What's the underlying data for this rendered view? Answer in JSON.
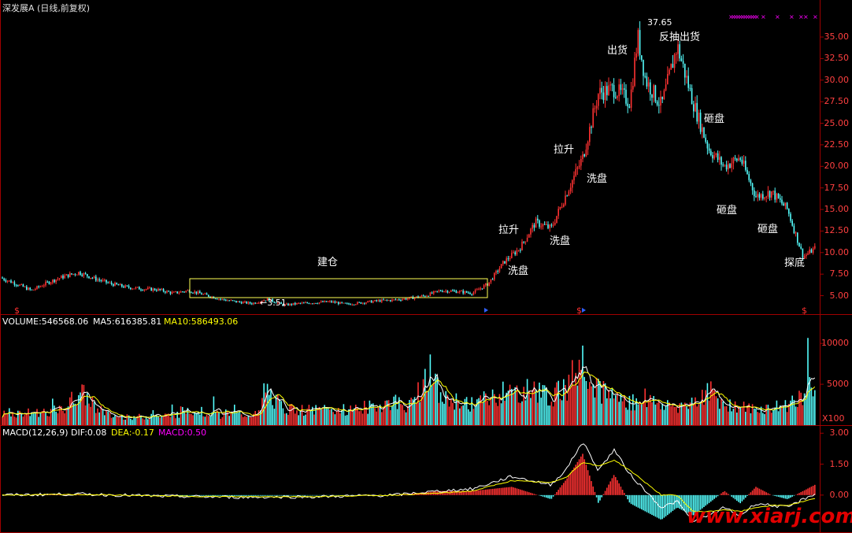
{
  "header": {
    "title": "深发展A (日线,前复权)"
  },
  "labels": {
    "build": "建仓",
    "low": "3.51",
    "high": "37.65",
    "pull1": "拉升",
    "wash1": "洗盘",
    "wash2": "洗盘",
    "pull2": "拉升",
    "wash3": "洗盘",
    "sell1": "出货",
    "sell2": "反抽出货",
    "smash1": "砸盘",
    "smash2": "砸盘",
    "smash3": "砸盘",
    "probe": "探底"
  },
  "volume_panel": {
    "label": "VOLUME:546568.06",
    "ma5": "MA5:616385.81",
    "ma10": "MA10:586493.06",
    "unit": "X100"
  },
  "macd_panel": {
    "label": "MACD(12,26,9)",
    "dif": "DIF:0.08",
    "dea": "DEA:-0.17",
    "macd": "MACD:0.50"
  },
  "watermark": "www.xiarj.com",
  "colors": {
    "up": "#ff3232",
    "down": "#54fcfc",
    "ma5": "#ffffff",
    "ma10": "#ffff00",
    "macd": "#ff00ff",
    "axis": "#a00000",
    "box": "#ffff55"
  },
  "chart_data": [
    {
      "type": "candlestick",
      "title": "深发展A (日线,前复权)",
      "ylim": [
        3.5,
        37.65
      ],
      "yticks": [
        "35.00",
        "32.50",
        "30.00",
        "27.50",
        "25.00",
        "22.50",
        "20.00",
        "17.50",
        "15.00",
        "12.50",
        "10.00",
        "7.50",
        "5.00"
      ],
      "x": [
        0,
        20,
        40,
        60,
        80,
        100,
        120,
        140,
        160,
        180,
        200,
        220,
        240,
        260,
        280,
        300,
        320,
        340,
        360,
        380,
        400,
        420,
        440,
        460,
        480,
        500,
        520,
        540,
        560,
        580,
        600,
        620,
        640,
        660,
        680,
        700,
        720,
        740,
        760,
        780,
        800,
        810,
        820,
        840,
        860,
        880,
        900,
        920,
        940,
        960,
        980,
        1000,
        1020,
        1035
      ],
      "close": [
        7.1,
        6.4,
        5.6,
        6.5,
        7.2,
        7.7,
        7.0,
        6.4,
        6.0,
        5.8,
        5.7,
        5.3,
        5.6,
        5.1,
        4.6,
        4.3,
        4.1,
        4.6,
        3.9,
        4.1,
        4.2,
        4.3,
        4.0,
        4.2,
        4.4,
        4.5,
        4.7,
        5.0,
        5.6,
        5.5,
        5.3,
        6.4,
        8.9,
        10.5,
        13.5,
        12.8,
        17.0,
        21.0,
        28.5,
        29.0,
        27.5,
        35.0,
        30.0,
        27.0,
        34.0,
        27.5,
        22.0,
        20.0,
        21.0,
        16.5,
        17.0,
        15.0,
        9.5,
        10.5
      ],
      "annotations": [
        "建仓",
        "3.51",
        "37.65",
        "拉升",
        "洗盘",
        "洗盘",
        "拉升",
        "洗盘",
        "出货",
        "反抽出货",
        "砸盘",
        "砸盘",
        "砸盘",
        "探底"
      ]
    },
    {
      "type": "bar",
      "title": "VOLUME",
      "ylim": [
        0,
        13000
      ],
      "yticks": [
        "10000",
        "5000"
      ],
      "unit": "X100",
      "x": [
        0,
        40,
        80,
        100,
        140,
        180,
        220,
        240,
        280,
        330,
        336,
        360,
        400,
        440,
        480,
        500,
        520,
        545,
        560,
        600,
        620,
        640,
        660,
        680,
        700,
        720,
        740,
        760,
        780,
        800,
        820,
        840,
        860,
        880,
        900,
        920,
        940,
        960,
        980,
        1000,
        1035
      ],
      "values": [
        1500,
        1700,
        2000,
        4500,
        1200,
        1100,
        1300,
        2200,
        1400,
        1500,
        5000,
        2200,
        2000,
        2100,
        2600,
        3200,
        2500,
        7500,
        3500,
        2900,
        3600,
        4200,
        4400,
        4800,
        3900,
        5000,
        9500,
        4900,
        4100,
        3000,
        3400,
        2800,
        2600,
        3200,
        4600,
        3000,
        2400,
        2100,
        2300,
        2700,
        5500
      ]
    },
    {
      "type": "line",
      "title": "MACD(12,26,9)",
      "ylim": [
        -1.8,
        3.2
      ],
      "yticks": [
        "3.00",
        "1.50",
        "0.00"
      ],
      "x": [
        0,
        100,
        200,
        300,
        400,
        500,
        560,
        600,
        650,
        700,
        720,
        740,
        760,
        780,
        800,
        820,
        840,
        860,
        880,
        900,
        920,
        940,
        960,
        980,
        1000,
        1035
      ],
      "series": [
        {
          "name": "DIF",
          "values": [
            0,
            0.05,
            -0.05,
            -0.1,
            -0.08,
            0,
            0.2,
            0.3,
            0.9,
            0.5,
            1.3,
            2.6,
            1.2,
            2.2,
            1.0,
            0.2,
            -0.6,
            -0.3,
            -1.3,
            -1.0,
            -0.6,
            -1.0,
            -0.4,
            -0.5,
            -0.6,
            0.08
          ]
        },
        {
          "name": "DEA",
          "values": [
            0,
            0.03,
            -0.04,
            -0.08,
            -0.07,
            0,
            0.1,
            0.2,
            0.7,
            0.6,
            0.9,
            1.6,
            1.4,
            1.7,
            1.2,
            0.6,
            0.0,
            0.0,
            -0.8,
            -0.8,
            -0.7,
            -0.8,
            -0.6,
            -0.5,
            -0.5,
            -0.17
          ]
        },
        {
          "name": "MACD",
          "values": [
            0,
            0.04,
            -0.02,
            -0.04,
            -0.02,
            0,
            0.2,
            0.2,
            0.4,
            -0.2,
            0.8,
            2.0,
            -0.4,
            1.0,
            -0.4,
            -0.8,
            -1.2,
            -0.6,
            -1.0,
            -0.4,
            0.2,
            -0.4,
            0.4,
            0,
            -0.2,
            0.5
          ]
        }
      ]
    }
  ]
}
